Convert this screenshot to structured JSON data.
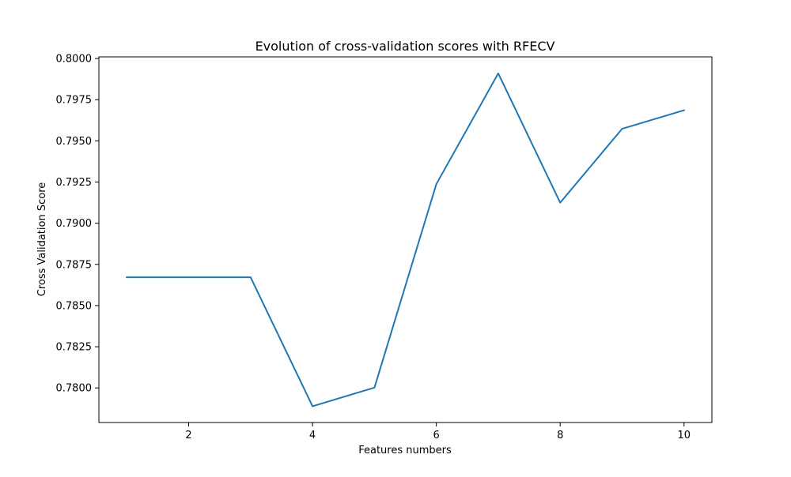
{
  "chart_data": {
    "type": "line",
    "title": "Evolution of cross-validation scores with RFECV",
    "xlabel": "Features numbers",
    "ylabel": "Cross Validation Score",
    "xlim": [
      0.55,
      10.45
    ],
    "ylim": [
      0.7779,
      0.8001
    ],
    "x_ticks": [
      2,
      4,
      6,
      8,
      10
    ],
    "x_tick_labels": [
      "2",
      "4",
      "6",
      "8",
      "10"
    ],
    "y_ticks": [
      0.78,
      0.7825,
      0.785,
      0.7875,
      0.79,
      0.7925,
      0.795,
      0.7975,
      0.8
    ],
    "y_tick_labels": [
      "0.7800",
      "0.7825",
      "0.7850",
      "0.7875",
      "0.7900",
      "0.7925",
      "0.7950",
      "0.7975",
      "0.8000"
    ],
    "grid": false,
    "series": [
      {
        "color": "#1f77b4",
        "x": [
          1,
          2,
          3,
          4,
          5,
          6,
          7,
          8,
          9,
          10
        ],
        "y": [
          0.78672,
          0.78672,
          0.78672,
          0.77889,
          0.78002,
          0.79237,
          0.7991,
          0.79125,
          0.79573,
          0.79686
        ]
      }
    ]
  }
}
